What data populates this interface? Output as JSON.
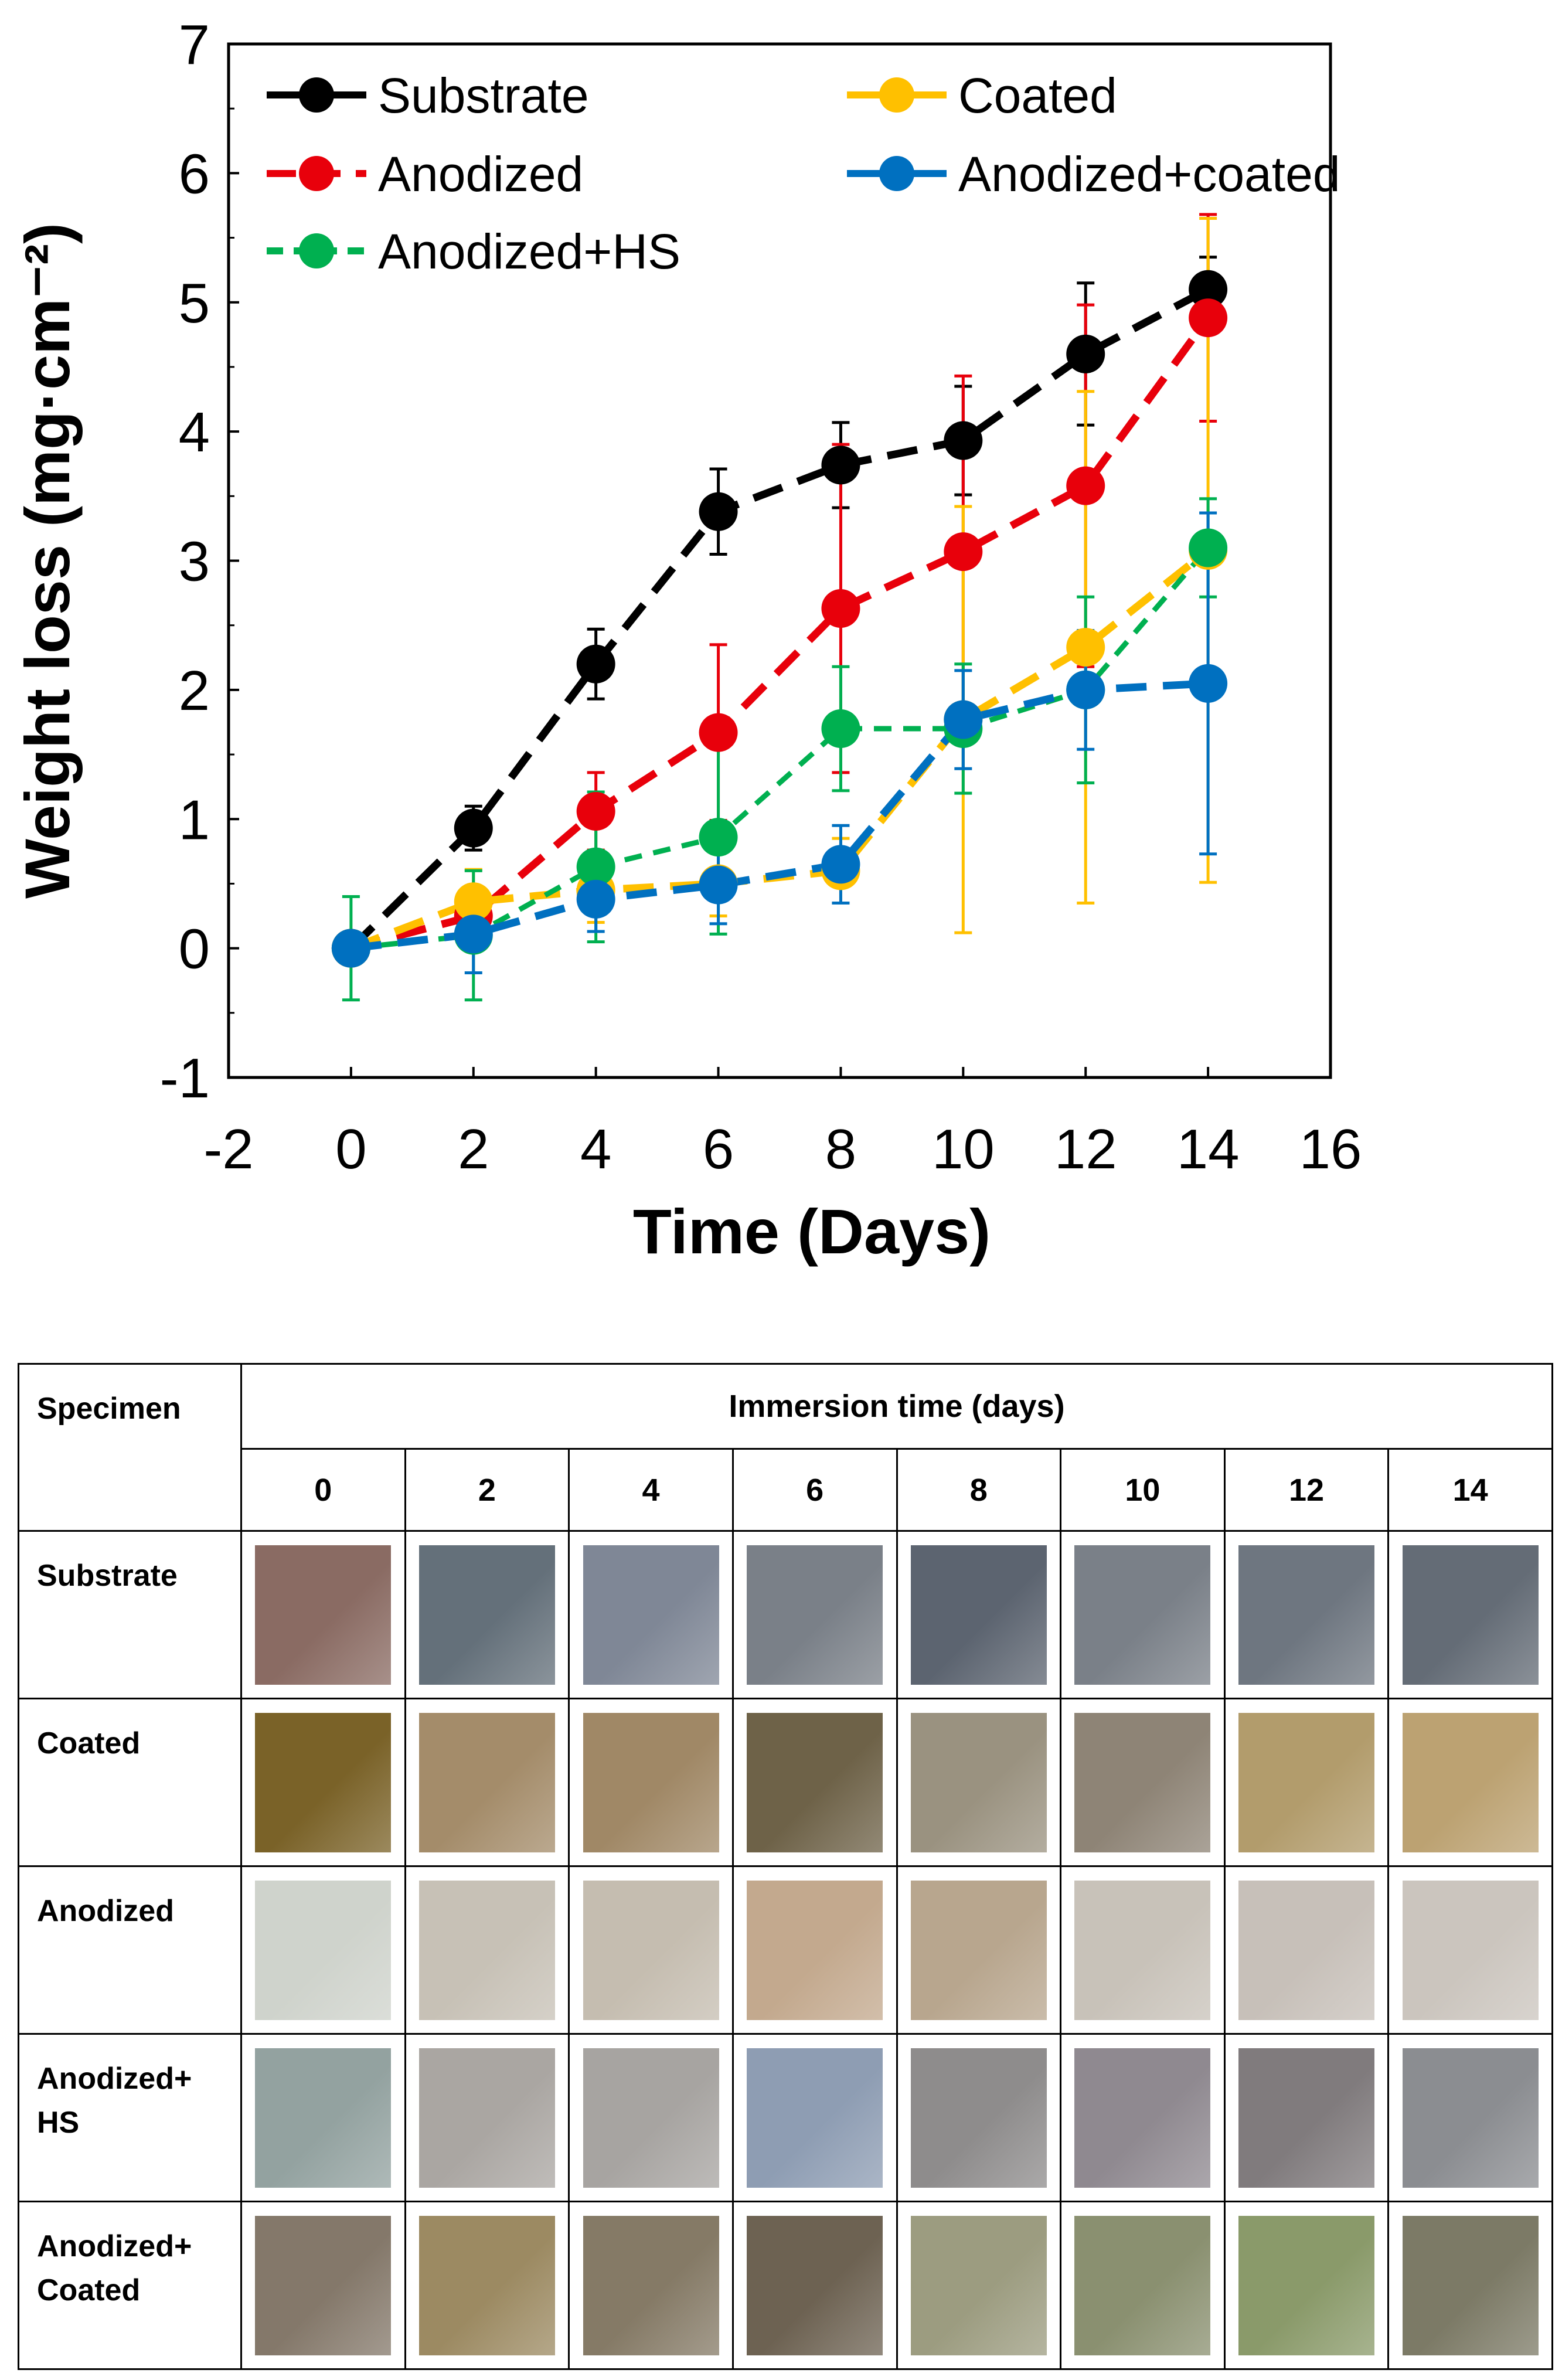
{
  "chart_data": {
    "type": "line",
    "xlabel": "Time (Days)",
    "ylabel": "Weight loss (mg·cm⁻²)",
    "xlim": [
      -2,
      16
    ],
    "ylim": [
      -1,
      7
    ],
    "x_ticks": [
      -2,
      0,
      2,
      4,
      6,
      8,
      10,
      12,
      14,
      16
    ],
    "y_ticks": [
      -1,
      0,
      1,
      2,
      3,
      4,
      5,
      6,
      7
    ],
    "legend": "top-left",
    "grid": false,
    "x": [
      0,
      2,
      4,
      6,
      8,
      10,
      12,
      14
    ],
    "series": [
      {
        "name": "Substrate",
        "color": "#000000",
        "values": [
          0.0,
          0.93,
          2.2,
          3.38,
          3.74,
          3.93,
          4.6,
          5.1
        ],
        "errors": [
          0.0,
          0.17,
          0.27,
          0.33,
          0.33,
          0.42,
          0.55,
          0.25
        ]
      },
      {
        "name": "Coated",
        "color": "#FFC000",
        "values": [
          0.0,
          0.36,
          0.45,
          0.5,
          0.6,
          1.77,
          2.33,
          3.08
        ],
        "errors": [
          0.0,
          0.25,
          0.25,
          0.25,
          0.25,
          1.65,
          1.98,
          2.57
        ]
      },
      {
        "name": "Anodized",
        "color": "#E8000B",
        "values": [
          0.0,
          0.25,
          1.06,
          1.67,
          2.63,
          3.07,
          3.58,
          4.88
        ],
        "errors": [
          0.0,
          0.15,
          0.3,
          0.68,
          1.27,
          1.36,
          1.4,
          0.8
        ]
      },
      {
        "name": "Anodized+coated",
        "color": "#0070C0",
        "values": [
          0.0,
          0.11,
          0.38,
          0.49,
          0.65,
          1.77,
          2.0,
          2.05
        ],
        "errors": [
          0.0,
          0.3,
          0.25,
          0.3,
          0.3,
          0.38,
          0.46,
          1.32
        ]
      },
      {
        "name": "Anodized+HS",
        "color": "#00B050",
        "values": [
          0.0,
          0.1,
          0.63,
          0.86,
          1.7,
          1.7,
          2.0,
          3.1
        ],
        "errors": [
          0.4,
          0.5,
          0.58,
          0.75,
          0.48,
          0.5,
          0.72,
          0.38
        ]
      }
    ]
  },
  "table": {
    "specimen_header": "Specimen",
    "immersion_header": "Immersion time (days)",
    "days": [
      "0",
      "2",
      "4",
      "6",
      "8",
      "10",
      "12",
      "14"
    ],
    "rows": [
      {
        "label": "Substrate",
        "shades": [
          "#8a6b63",
          "#64707a",
          "#7f8796",
          "#7a8088",
          "#5c6470",
          "#7a8088",
          "#6e7680",
          "#646c76"
        ]
      },
      {
        "label": "Coated",
        "shades": [
          "#7a6228",
          "#a48c6a",
          "#a08866",
          "#6e6248",
          "#9a9280",
          "#8e8476",
          "#b29c6c",
          "#bca272"
        ]
      },
      {
        "label": "Anodized",
        "shades": [
          "#cfd3cc",
          "#c7c1b6",
          "#c5bdb0",
          "#c3a98e",
          "#b8a68e",
          "#c8c2b9",
          "#c7c0b9",
          "#cbc5be"
        ]
      },
      {
        "label": "Anodized+\nHS",
        "shades": [
          "#93a2a0",
          "#aaa6a2",
          "#a7a4a1",
          "#8e9db3",
          "#8e8c8c",
          "#8f8990",
          "#807b7d",
          "#8b8d91"
        ]
      },
      {
        "label": "Anodized+\nCoated",
        "shades": [
          "#84786a",
          "#9c8a62",
          "#857a66",
          "#6d6252",
          "#9c9c80",
          "#8a9070",
          "#8a9a6a",
          "#7c7a66"
        ]
      }
    ]
  }
}
